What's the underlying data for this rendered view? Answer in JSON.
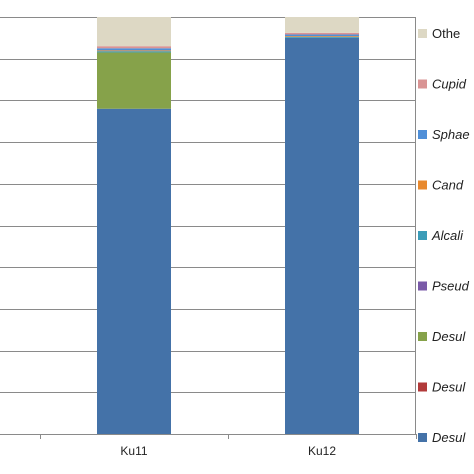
{
  "chart_data": {
    "type": "bar",
    "stacked": true,
    "categories": [
      "Ku11",
      "Ku12"
    ],
    "ylim": [
      0,
      100
    ],
    "ygrid_step": 10,
    "grid": true,
    "legend_position": "right",
    "series": [
      {
        "name": "Desul",
        "italic": true,
        "color": "#4472A8",
        "values": [
          78,
          95
        ]
      },
      {
        "name": "Desul",
        "italic": true,
        "color": "#B23A3A",
        "values": [
          0,
          0
        ]
      },
      {
        "name": "Desul",
        "italic": true,
        "color": "#86A24A",
        "values": [
          13.5,
          0
        ]
      },
      {
        "name": "Pseud",
        "italic": true,
        "color": "#7A5AA8",
        "values": [
          0,
          0
        ]
      },
      {
        "name": "Alcali",
        "italic": true,
        "color": "#3B9CB8",
        "values": [
          0.3,
          0.2
        ]
      },
      {
        "name": "Cand",
        "italic": true,
        "color": "#E8892E",
        "values": [
          0.2,
          0.2
        ]
      },
      {
        "name": "Sphae",
        "italic": true,
        "color": "#4F8FD8",
        "values": [
          0.5,
          0.4
        ]
      },
      {
        "name": "Cupid",
        "italic": true,
        "color": "#D99494",
        "values": [
          0.5,
          0.4
        ]
      },
      {
        "name": "Othe",
        "italic": false,
        "color": "#DDD8C4",
        "values": [
          7,
          3.8
        ]
      }
    ]
  }
}
